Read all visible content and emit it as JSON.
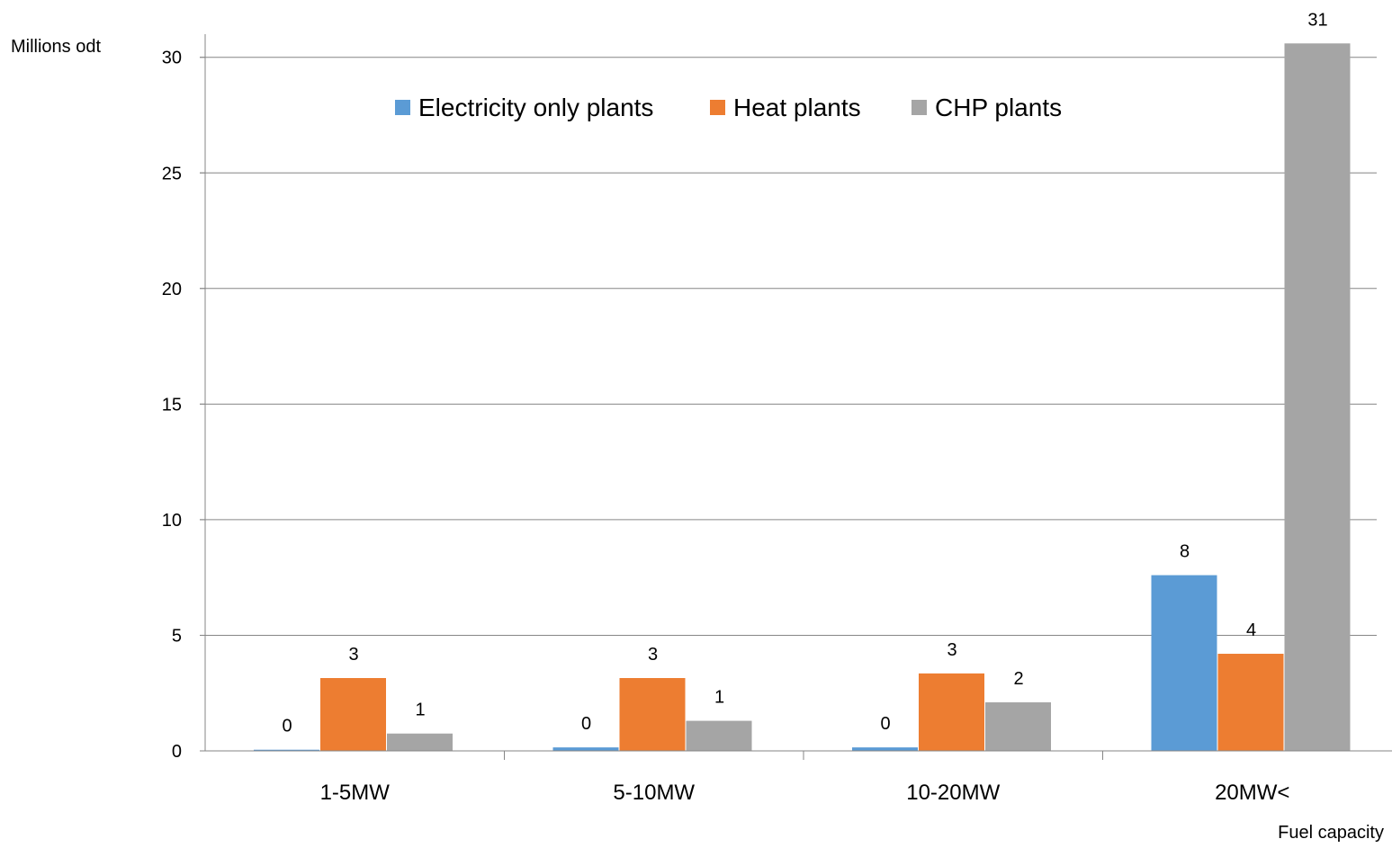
{
  "chart_data": {
    "type": "bar",
    "ylabel": "Millions odt",
    "xlabel": "Fuel capacity",
    "categories": [
      "1-5MW",
      "5-10MW",
      "10-20MW",
      "20MW<"
    ],
    "series": [
      {
        "name": "Electricity only plants",
        "color": "#5B9BD5",
        "values": [
          0.05,
          0.15,
          0.15,
          7.6
        ],
        "labels": [
          "0",
          "0",
          "0",
          "8"
        ]
      },
      {
        "name": "Heat plants",
        "color": "#ED7D31",
        "values": [
          3.15,
          3.15,
          3.35,
          4.2
        ],
        "labels": [
          "3",
          "3",
          "3",
          "4"
        ]
      },
      {
        "name": "CHP plants",
        "color": "#A5A5A5",
        "values": [
          0.75,
          1.3,
          2.1,
          30.6
        ],
        "labels": [
          "1",
          "1",
          "2",
          "31"
        ]
      }
    ],
    "ylim": [
      0,
      31
    ],
    "yticks": [
      0,
      5,
      10,
      15,
      20,
      25,
      30
    ],
    "grid": true,
    "legend_position": "top-center"
  }
}
